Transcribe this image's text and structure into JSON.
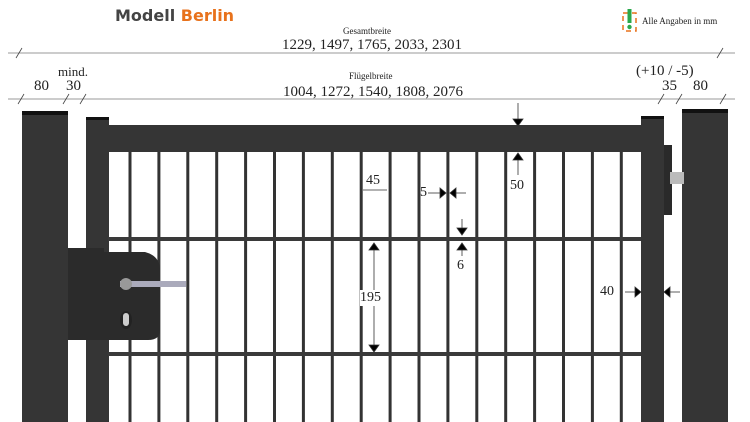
{
  "brand": {
    "part1": "Modell",
    "part2": "Berlin"
  },
  "note": {
    "icon": "warning-exclamation-icon",
    "text": "Alle Angaben in mm"
  },
  "overall": {
    "label": "Gesamtbreite",
    "values": "1229, 1497, 1765, 2033, 2301"
  },
  "leaf": {
    "label": "Flügelbreite",
    "values": "1004, 1272, 1540, 1808, 2076"
  },
  "dims": {
    "post_left": "80",
    "gap_left_label": "mind.",
    "gap_left": "30",
    "tolerance": "(+10 / -5)",
    "gap_right": "35",
    "post_right": "80",
    "wire_spacing": "45",
    "wire_thickness": "5",
    "top_rail": "50",
    "horizontal_wire": "6",
    "mesh_height": "195",
    "stile": "40"
  },
  "colors": {
    "frame": "#333333",
    "accent": "#e8721c",
    "icon_green": "#2aa84a"
  }
}
